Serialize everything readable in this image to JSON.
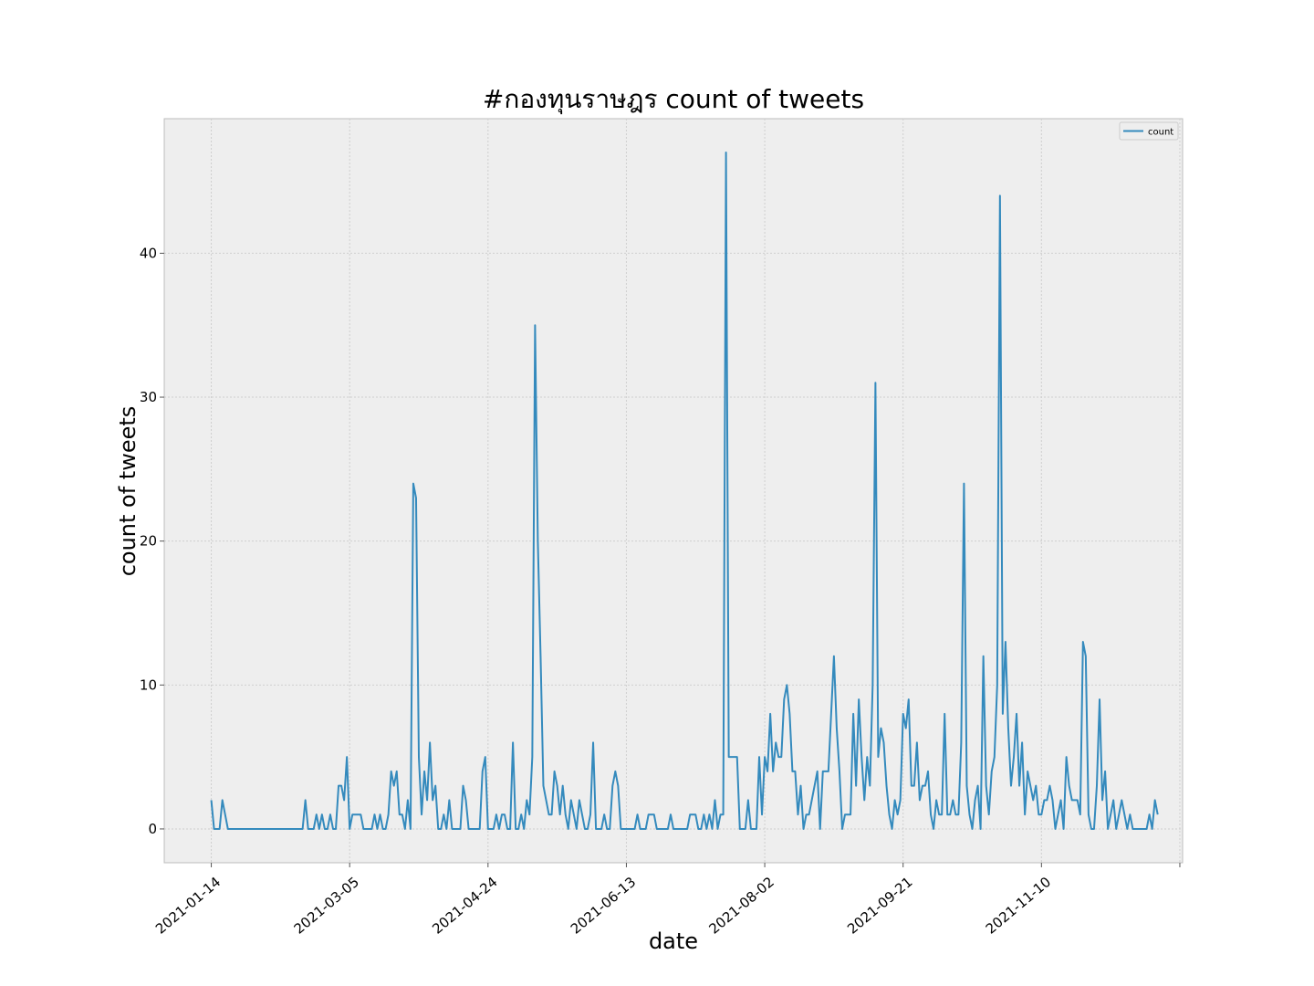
{
  "chart_data": {
    "type": "line",
    "title": "#กองทุนราษฎร count of tweets",
    "xlabel": "date",
    "ylabel": "count of tweets",
    "x_start": "2021-01-14",
    "x_end": "2021-12-23",
    "xlim_days": [
      -17,
      351
    ],
    "ylim": [
      -2.35,
      49.35
    ],
    "yticks": [
      0,
      10,
      20,
      30,
      40
    ],
    "xticks": [
      {
        "label": "2021-01-14",
        "day": 0
      },
      {
        "label": "2021-03-05",
        "day": 50
      },
      {
        "label": "2021-04-24",
        "day": 100
      },
      {
        "label": "2021-06-13",
        "day": 150
      },
      {
        "label": "2021-08-02",
        "day": 200
      },
      {
        "label": "2021-09-21",
        "day": 250
      },
      {
        "label": "2021-11-10",
        "day": 300
      },
      {
        "label": "",
        "day": 350
      }
    ],
    "grid": true,
    "legend": {
      "position": "top-right",
      "entries": [
        "count"
      ]
    },
    "series": [
      {
        "name": "count",
        "color": "#348abd",
        "points": [
          [
            0,
            2
          ],
          [
            1,
            0
          ],
          [
            2,
            0
          ],
          [
            3,
            0
          ],
          [
            4,
            2
          ],
          [
            5,
            1
          ],
          [
            6,
            0
          ],
          [
            7,
            0
          ],
          [
            8,
            0
          ],
          [
            9,
            0
          ],
          [
            10,
            0
          ],
          [
            12,
            0
          ],
          [
            15,
            0
          ],
          [
            18,
            0
          ],
          [
            21,
            0
          ],
          [
            24,
            0
          ],
          [
            27,
            0
          ],
          [
            30,
            0
          ],
          [
            33,
            0
          ],
          [
            34,
            2
          ],
          [
            35,
            0
          ],
          [
            36,
            0
          ],
          [
            37,
            0
          ],
          [
            38,
            1
          ],
          [
            39,
            0
          ],
          [
            40,
            1
          ],
          [
            41,
            0
          ],
          [
            42,
            0
          ],
          [
            43,
            1
          ],
          [
            44,
            0
          ],
          [
            45,
            0
          ],
          [
            46,
            3
          ],
          [
            47,
            3
          ],
          [
            48,
            2
          ],
          [
            49,
            5
          ],
          [
            50,
            0
          ],
          [
            51,
            1
          ],
          [
            52,
            1
          ],
          [
            53,
            1
          ],
          [
            54,
            1
          ],
          [
            55,
            0
          ],
          [
            56,
            0
          ],
          [
            57,
            0
          ],
          [
            58,
            0
          ],
          [
            59,
            1
          ],
          [
            60,
            0
          ],
          [
            61,
            1
          ],
          [
            62,
            0
          ],
          [
            63,
            0
          ],
          [
            64,
            1
          ],
          [
            65,
            4
          ],
          [
            66,
            3
          ],
          [
            67,
            4
          ],
          [
            68,
            1
          ],
          [
            69,
            1
          ],
          [
            70,
            0
          ],
          [
            71,
            2
          ],
          [
            72,
            0
          ],
          [
            73,
            24
          ],
          [
            74,
            23
          ],
          [
            75,
            5
          ],
          [
            76,
            1
          ],
          [
            77,
            4
          ],
          [
            78,
            2
          ],
          [
            79,
            6
          ],
          [
            80,
            2
          ],
          [
            81,
            3
          ],
          [
            82,
            0
          ],
          [
            83,
            0
          ],
          [
            84,
            1
          ],
          [
            85,
            0
          ],
          [
            86,
            2
          ],
          [
            87,
            0
          ],
          [
            88,
            0
          ],
          [
            89,
            0
          ],
          [
            90,
            0
          ],
          [
            91,
            3
          ],
          [
            92,
            2
          ],
          [
            93,
            0
          ],
          [
            94,
            0
          ],
          [
            95,
            0
          ],
          [
            96,
            0
          ],
          [
            97,
            0
          ],
          [
            98,
            4
          ],
          [
            99,
            5
          ],
          [
            100,
            0
          ],
          [
            101,
            0
          ],
          [
            102,
            0
          ],
          [
            103,
            1
          ],
          [
            104,
            0
          ],
          [
            105,
            1
          ],
          [
            106,
            1
          ],
          [
            107,
            0
          ],
          [
            108,
            0
          ],
          [
            109,
            6
          ],
          [
            110,
            0
          ],
          [
            111,
            0
          ],
          [
            112,
            1
          ],
          [
            113,
            0
          ],
          [
            114,
            2
          ],
          [
            115,
            1
          ],
          [
            116,
            5
          ],
          [
            117,
            35
          ],
          [
            118,
            20
          ],
          [
            119,
            12
          ],
          [
            120,
            3
          ],
          [
            121,
            2
          ],
          [
            122,
            1
          ],
          [
            123,
            1
          ],
          [
            124,
            4
          ],
          [
            125,
            3
          ],
          [
            126,
            1
          ],
          [
            127,
            3
          ],
          [
            128,
            1
          ],
          [
            129,
            0
          ],
          [
            130,
            2
          ],
          [
            131,
            1
          ],
          [
            132,
            0
          ],
          [
            133,
            2
          ],
          [
            134,
            1
          ],
          [
            135,
            0
          ],
          [
            136,
            0
          ],
          [
            137,
            1
          ],
          [
            138,
            6
          ],
          [
            139,
            0
          ],
          [
            140,
            0
          ],
          [
            141,
            0
          ],
          [
            142,
            1
          ],
          [
            143,
            0
          ],
          [
            144,
            0
          ],
          [
            145,
            3
          ],
          [
            146,
            4
          ],
          [
            147,
            3
          ],
          [
            148,
            0
          ],
          [
            149,
            0
          ],
          [
            150,
            0
          ],
          [
            151,
            0
          ],
          [
            152,
            0
          ],
          [
            153,
            0
          ],
          [
            154,
            1
          ],
          [
            155,
            0
          ],
          [
            156,
            0
          ],
          [
            157,
            0
          ],
          [
            158,
            1
          ],
          [
            159,
            1
          ],
          [
            160,
            1
          ],
          [
            161,
            0
          ],
          [
            162,
            0
          ],
          [
            163,
            0
          ],
          [
            164,
            0
          ],
          [
            165,
            0
          ],
          [
            166,
            1
          ],
          [
            167,
            0
          ],
          [
            168,
            0
          ],
          [
            169,
            0
          ],
          [
            170,
            0
          ],
          [
            171,
            0
          ],
          [
            172,
            0
          ],
          [
            173,
            1
          ],
          [
            174,
            1
          ],
          [
            175,
            1
          ],
          [
            176,
            0
          ],
          [
            177,
            0
          ],
          [
            178,
            1
          ],
          [
            179,
            0
          ],
          [
            180,
            1
          ],
          [
            181,
            0
          ],
          [
            182,
            2
          ],
          [
            183,
            0
          ],
          [
            184,
            1
          ],
          [
            185,
            1
          ],
          [
            186,
            47
          ],
          [
            187,
            5
          ],
          [
            188,
            5
          ],
          [
            189,
            5
          ],
          [
            190,
            5
          ],
          [
            191,
            0
          ],
          [
            192,
            0
          ],
          [
            193,
            0
          ],
          [
            194,
            2
          ],
          [
            195,
            0
          ],
          [
            196,
            0
          ],
          [
            197,
            0
          ],
          [
            198,
            5
          ],
          [
            199,
            1
          ],
          [
            200,
            5
          ],
          [
            201,
            4
          ],
          [
            202,
            8
          ],
          [
            203,
            4
          ],
          [
            204,
            6
          ],
          [
            205,
            5
          ],
          [
            206,
            5
          ],
          [
            207,
            9
          ],
          [
            208,
            10
          ],
          [
            209,
            8
          ],
          [
            210,
            4
          ],
          [
            211,
            4
          ],
          [
            212,
            1
          ],
          [
            213,
            3
          ],
          [
            214,
            0
          ],
          [
            215,
            1
          ],
          [
            216,
            1
          ],
          [
            217,
            2
          ],
          [
            218,
            3
          ],
          [
            219,
            4
          ],
          [
            220,
            0
          ],
          [
            221,
            4
          ],
          [
            222,
            4
          ],
          [
            223,
            4
          ],
          [
            224,
            8
          ],
          [
            225,
            12
          ],
          [
            226,
            7
          ],
          [
            227,
            4
          ],
          [
            228,
            0
          ],
          [
            229,
            1
          ],
          [
            230,
            1
          ],
          [
            231,
            1
          ],
          [
            232,
            8
          ],
          [
            233,
            3
          ],
          [
            234,
            9
          ],
          [
            235,
            5
          ],
          [
            236,
            2
          ],
          [
            237,
            5
          ],
          [
            238,
            3
          ],
          [
            239,
            10
          ],
          [
            240,
            31
          ],
          [
            241,
            5
          ],
          [
            242,
            7
          ],
          [
            243,
            6
          ],
          [
            244,
            3
          ],
          [
            245,
            1
          ],
          [
            246,
            0
          ],
          [
            247,
            2
          ],
          [
            248,
            1
          ],
          [
            249,
            2
          ],
          [
            250,
            8
          ],
          [
            251,
            7
          ],
          [
            252,
            9
          ],
          [
            253,
            3
          ],
          [
            254,
            3
          ],
          [
            255,
            6
          ],
          [
            256,
            2
          ],
          [
            257,
            3
          ],
          [
            258,
            3
          ],
          [
            259,
            4
          ],
          [
            260,
            1
          ],
          [
            261,
            0
          ],
          [
            262,
            2
          ],
          [
            263,
            1
          ],
          [
            264,
            1
          ],
          [
            265,
            8
          ],
          [
            266,
            1
          ],
          [
            267,
            1
          ],
          [
            268,
            2
          ],
          [
            269,
            1
          ],
          [
            270,
            1
          ],
          [
            271,
            6
          ],
          [
            272,
            24
          ],
          [
            273,
            3
          ],
          [
            274,
            1
          ],
          [
            275,
            0
          ],
          [
            276,
            2
          ],
          [
            277,
            3
          ],
          [
            278,
            0
          ],
          [
            279,
            12
          ],
          [
            280,
            3
          ],
          [
            281,
            1
          ],
          [
            282,
            4
          ],
          [
            283,
            5
          ],
          [
            284,
            10
          ],
          [
            285,
            44
          ],
          [
            286,
            8
          ],
          [
            287,
            13
          ],
          [
            288,
            7
          ],
          [
            289,
            3
          ],
          [
            290,
            5
          ],
          [
            291,
            8
          ],
          [
            292,
            3
          ],
          [
            293,
            6
          ],
          [
            294,
            1
          ],
          [
            295,
            4
          ],
          [
            296,
            3
          ],
          [
            297,
            2
          ],
          [
            298,
            3
          ],
          [
            299,
            1
          ],
          [
            300,
            1
          ],
          [
            301,
            2
          ],
          [
            302,
            2
          ],
          [
            303,
            3
          ],
          [
            304,
            2
          ],
          [
            305,
            0
          ],
          [
            306,
            1
          ],
          [
            307,
            2
          ],
          [
            308,
            0
          ],
          [
            309,
            5
          ],
          [
            310,
            3
          ],
          [
            311,
            2
          ],
          [
            312,
            2
          ],
          [
            313,
            2
          ],
          [
            314,
            1
          ],
          [
            315,
            13
          ],
          [
            316,
            12
          ],
          [
            317,
            1
          ],
          [
            318,
            0
          ],
          [
            319,
            0
          ],
          [
            320,
            3
          ],
          [
            321,
            9
          ],
          [
            322,
            2
          ],
          [
            323,
            4
          ],
          [
            324,
            0
          ],
          [
            325,
            1
          ],
          [
            326,
            2
          ],
          [
            327,
            0
          ],
          [
            328,
            1
          ],
          [
            329,
            2
          ],
          [
            330,
            1
          ],
          [
            331,
            0
          ],
          [
            332,
            1
          ],
          [
            333,
            0
          ],
          [
            334,
            0
          ],
          [
            335,
            0
          ],
          [
            336,
            0
          ],
          [
            337,
            0
          ],
          [
            338,
            0
          ],
          [
            339,
            1
          ],
          [
            340,
            0
          ],
          [
            341,
            2
          ],
          [
            342,
            1
          ]
        ]
      }
    ]
  }
}
